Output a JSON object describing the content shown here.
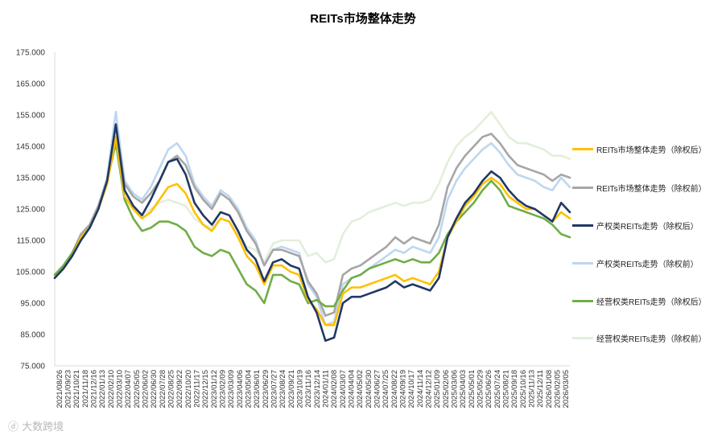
{
  "chart_data": {
    "type": "line",
    "title": "REITs市场整体走势",
    "xlabel": "",
    "ylabel": "",
    "ylim": [
      75,
      175
    ],
    "y_ticks": [
      "75.000",
      "85.000",
      "95.000",
      "105.000",
      "115.000",
      "125.000",
      "135.000",
      "145.000",
      "155.000",
      "165.000",
      "175.000"
    ],
    "x_ticks": [
      "2021/08/26",
      "2021/09/23",
      "2021/10/21",
      "2021/11/18",
      "2021/12/16",
      "2022/01/13",
      "2022/02/10",
      "2022/03/10",
      "2022/04/07",
      "2022/05/05",
      "2022/06/02",
      "2022/06/30",
      "2022/07/28",
      "2022/08/25",
      "2022/09/22",
      "2022/10/20",
      "2022/11/17",
      "2022/12/15",
      "2023/01/12",
      "2023/02/09",
      "2023/03/09",
      "2023/04/06",
      "2023/05/04",
      "2023/06/01",
      "2023/06/29",
      "2023/07/27",
      "2023/08/24",
      "2023/09/21",
      "2023/10/19",
      "2023/11/16",
      "2023/12/14",
      "2024/01/11",
      "2024/02/08",
      "2024/03/07",
      "2024/04/04",
      "2024/05/02",
      "2024/05/30",
      "2024/06/27",
      "2024/07/25",
      "2024/08/22",
      "2024/09/19",
      "2024/10/17",
      "2024/11/14",
      "2024/12/12",
      "2025/01/09",
      "2025/02/06",
      "2025/03/06",
      "2025/04/03",
      "2025/05/01",
      "2025/05/29",
      "2025/06/26",
      "2025/07/24",
      "2025/08/21",
      "2025/09/18",
      "2025/10/16",
      "2025/11/13",
      "2025/12/11",
      "2026/01/08",
      "2026/02/05",
      "2026/03/05"
    ],
    "grid": false,
    "legend_position": "right",
    "series": [
      {
        "name": "REITs市场整体走势（除权后）",
        "color": "#ffc000",
        "values": [
          103,
          106,
          110,
          116,
          119,
          125,
          133,
          148,
          129,
          125,
          122,
          124,
          128,
          132,
          133,
          130,
          124,
          120,
          118,
          122,
          121,
          116,
          110,
          107,
          101,
          107,
          107,
          105,
          104,
          96,
          93,
          88,
          88,
          98,
          100,
          100,
          101,
          102,
          103,
          104,
          102,
          103,
          102,
          101,
          105,
          116,
          121,
          126,
          129,
          133,
          135,
          133,
          129,
          127,
          125,
          125,
          123,
          121,
          124,
          122
        ]
      },
      {
        "name": "REITs市场整体走势（除权前）",
        "color": "#a6a6a6",
        "values": [
          104,
          107,
          111,
          117,
          120,
          126,
          134,
          152,
          133,
          129,
          127,
          130,
          134,
          140,
          142,
          139,
          132,
          128,
          125,
          130,
          128,
          124,
          118,
          114,
          107,
          112,
          112,
          111,
          110,
          102,
          98,
          91,
          92,
          104,
          106,
          107,
          109,
          111,
          113,
          116,
          114,
          116,
          115,
          114,
          120,
          132,
          138,
          142,
          145,
          148,
          149,
          146,
          142,
          139,
          138,
          137,
          136,
          134,
          136,
          135
        ]
      },
      {
        "name": "产权类REITs走势（除权后）",
        "color": "#203864",
        "values": [
          103,
          106,
          110,
          115,
          119,
          125,
          134,
          152,
          131,
          126,
          123,
          128,
          134,
          140,
          141,
          136,
          127,
          123,
          120,
          124,
          123,
          118,
          112,
          109,
          102,
          108,
          109,
          107,
          106,
          97,
          92,
          83,
          84,
          95,
          97,
          97,
          98,
          99,
          100,
          102,
          100,
          101,
          100,
          99,
          103,
          116,
          122,
          127,
          130,
          134,
          137,
          135,
          131,
          128,
          126,
          125,
          123,
          121,
          127,
          124
        ]
      },
      {
        "name": "产权类REITs走势（除权前）",
        "color": "#bdd7ee",
        "values": [
          104,
          107,
          111,
          116,
          120,
          126,
          135,
          156,
          134,
          130,
          128,
          132,
          138,
          144,
          146,
          142,
          133,
          129,
          126,
          131,
          129,
          125,
          119,
          115,
          107,
          112,
          113,
          112,
          111,
          101,
          97,
          88,
          89,
          101,
          103,
          104,
          106,
          108,
          110,
          112,
          111,
          113,
          112,
          111,
          116,
          128,
          134,
          138,
          141,
          144,
          146,
          143,
          139,
          136,
          135,
          134,
          132,
          131,
          135,
          132
        ]
      },
      {
        "name": "经营权类REITs走势（除权后）",
        "color": "#70ad47",
        "values": [
          104,
          107,
          111,
          116,
          119,
          125,
          134,
          146,
          128,
          122,
          118,
          119,
          121,
          121,
          120,
          118,
          113,
          111,
          110,
          112,
          111,
          106,
          101,
          99,
          95,
          104,
          104,
          102,
          101,
          95,
          96,
          94,
          94,
          99,
          103,
          104,
          106,
          107,
          108,
          109,
          108,
          109,
          108,
          108,
          111,
          117,
          121,
          124,
          127,
          131,
          134,
          131,
          126,
          125,
          124,
          123,
          122,
          120,
          117,
          116
        ]
      },
      {
        "name": "经营权类REITs走势（除权前）",
        "color": "#e2efda",
        "values": [
          104,
          107,
          111,
          116,
          120,
          126,
          135,
          149,
          131,
          126,
          123,
          125,
          127,
          128,
          127,
          126,
          122,
          120,
          119,
          122,
          121,
          117,
          113,
          112,
          108,
          114,
          115,
          115,
          115,
          110,
          111,
          108,
          109,
          117,
          121,
          122,
          124,
          125,
          126,
          127,
          126,
          127,
          127,
          128,
          133,
          140,
          145,
          148,
          150,
          153,
          156,
          152,
          148,
          146,
          146,
          145,
          144,
          142,
          142,
          141
        ]
      }
    ]
  },
  "watermark": "大数跨境"
}
